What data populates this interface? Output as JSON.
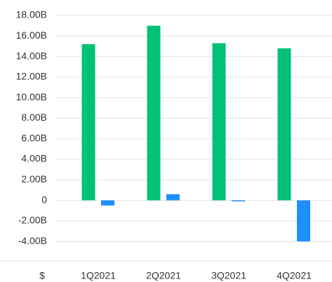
{
  "chart_data": {
    "type": "bar",
    "axis_label": "$",
    "categories": [
      "1Q2021",
      "2Q2021",
      "3Q2021",
      "4Q2021"
    ],
    "series": [
      {
        "color": "#00c176",
        "values": [
          15.2,
          17.0,
          15.3,
          14.8
        ]
      },
      {
        "color": "#1e8fff",
        "values": [
          -0.5,
          0.6,
          -0.1,
          -4.0
        ]
      }
    ],
    "ylim": [
      -5.9,
      18
    ],
    "yticks": [
      {
        "value": -4,
        "label": "-4.00B"
      },
      {
        "value": -2,
        "label": "-2.00B"
      },
      0,
      {
        "value": 2,
        "label": "2.00B"
      },
      {
        "value": 4,
        "label": "4.00B"
      },
      {
        "value": 6,
        "label": "6.00B"
      },
      {
        "value": 8,
        "label": "8.00B"
      },
      {
        "value": 10,
        "label": "10.00B"
      },
      {
        "value": 12,
        "label": "12.00B"
      },
      {
        "value": 14,
        "label": "14.00B"
      },
      {
        "value": 16,
        "label": "16.00B"
      },
      {
        "value": 18,
        "label": "18.00B"
      }
    ],
    "grid": true
  }
}
